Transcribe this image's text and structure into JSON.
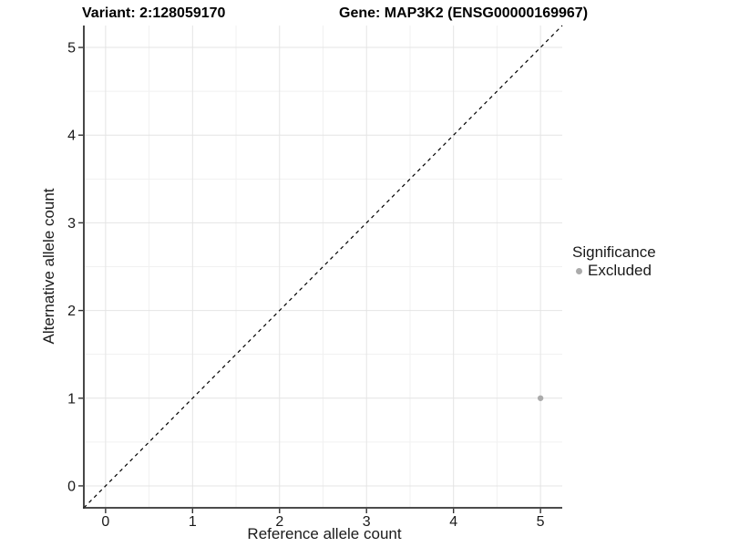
{
  "titles": {
    "variant": "Variant: 2:128059170",
    "gene": "Gene: MAP3K2 (ENSG00000169967)"
  },
  "legend": {
    "title": "Significance",
    "items": [
      {
        "label": "Excluded",
        "color": "#ABABAB"
      }
    ]
  },
  "colors": {
    "background": "#FFFFFF",
    "axis_line": "#333333",
    "tick_label": "#1A1A1A",
    "grid_major": "#E4E4E4",
    "grid_minor": "#F1F1F1",
    "identity_line": "#000000",
    "point_excluded": "#ABABAB"
  },
  "chart_data": {
    "type": "scatter",
    "title_left": "Variant: 2:128059170",
    "title_right": "Gene: MAP3K2 (ENSG00000169967)",
    "xlabel": "Reference allele count",
    "ylabel": "Alternative allele count",
    "xlim": [
      -0.25,
      5.25
    ],
    "ylim": [
      -0.25,
      5.25
    ],
    "x_ticks": [
      0,
      1,
      2,
      3,
      4,
      5
    ],
    "y_ticks": [
      0,
      1,
      2,
      3,
      4,
      5
    ],
    "x_minor_gridlines": [
      0.5,
      1.5,
      2.5,
      3.5,
      4.5
    ],
    "y_minor_gridlines": [
      0.5,
      1.5,
      2.5,
      3.5,
      4.5
    ],
    "grid": "major+minor",
    "legend_position": "right",
    "identity_line": {
      "slope": 1,
      "intercept": 0,
      "style": "dashed",
      "color": "#000000"
    },
    "series": [
      {
        "name": "Excluded",
        "color": "#ABABAB",
        "points": [
          {
            "x": 5,
            "y": 1
          }
        ]
      }
    ]
  }
}
